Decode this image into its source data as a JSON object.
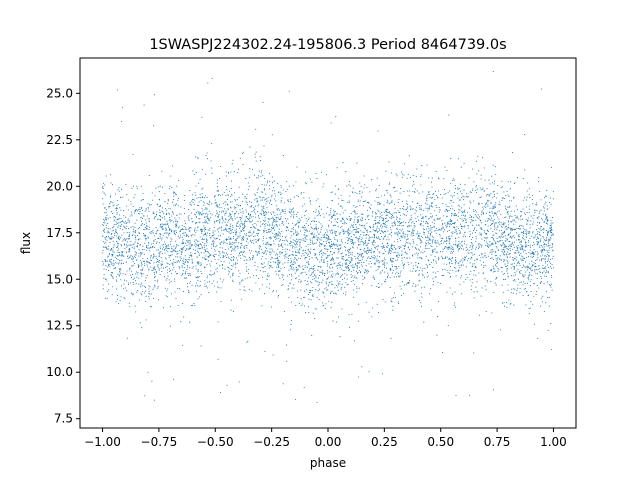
{
  "chart_data": {
    "type": "scatter",
    "title": "1SWASPJ224302.24-195806.3 Period 8464739.0s",
    "xlabel": "phase",
    "ylabel": "flux",
    "xlim": [
      -1.1,
      1.1
    ],
    "ylim": [
      7.0,
      26.9
    ],
    "xticks": [
      -1.0,
      -0.75,
      -0.5,
      -0.25,
      0.0,
      0.25,
      0.5,
      0.75,
      1.0
    ],
    "xtick_labels": [
      "−1.00",
      "−0.75",
      "−0.50",
      "−0.25",
      "0.00",
      "0.25",
      "0.50",
      "0.75",
      "1.00"
    ],
    "yticks": [
      7.5,
      10.0,
      12.5,
      15.0,
      17.5,
      20.0,
      22.5,
      25.0
    ],
    "ytick_labels": [
      "7.5",
      "10.0",
      "12.5",
      "15.0",
      "17.5",
      "20.0",
      "22.5",
      "25.0"
    ],
    "grid": false,
    "legend": "none",
    "marker_color": "#1f77b4",
    "series": [
      {
        "x_range": [
          -1.0,
          1.0
        ],
        "median_flux": 17.0,
        "typical_flux_range": [
          14.0,
          20.0
        ],
        "envelope": {
          "phase": [
            -1.0,
            -0.95,
            -0.9,
            -0.85,
            -0.8,
            -0.75,
            -0.7,
            -0.65,
            -0.6,
            -0.55,
            -0.5,
            -0.45,
            -0.4,
            -0.35,
            -0.3,
            -0.25,
            -0.2,
            -0.15,
            -0.1,
            -0.05,
            0.0,
            0.05,
            0.1,
            0.15,
            0.2,
            0.25,
            0.3,
            0.35,
            0.4,
            0.45,
            0.5,
            0.55,
            0.6,
            0.65,
            0.7,
            0.75,
            0.8,
            0.85,
            0.9,
            0.95,
            1.0
          ],
          "median": [
            17.2,
            17.3,
            17.0,
            16.9,
            16.9,
            17.1,
            17.0,
            16.9,
            17.1,
            17.4,
            17.5,
            17.6,
            17.3,
            17.5,
            17.8,
            17.4,
            17.0,
            16.8,
            16.6,
            16.5,
            16.6,
            16.8,
            16.9,
            17.0,
            17.1,
            17.2,
            17.1,
            17.3,
            17.5,
            17.4,
            17.3,
            17.2,
            17.5,
            17.4,
            17.6,
            17.2,
            17.0,
            16.8,
            16.6,
            16.8,
            16.9
          ]
        },
        "outlier_flux_range": [
          8.1,
          26.3
        ]
      }
    ]
  }
}
